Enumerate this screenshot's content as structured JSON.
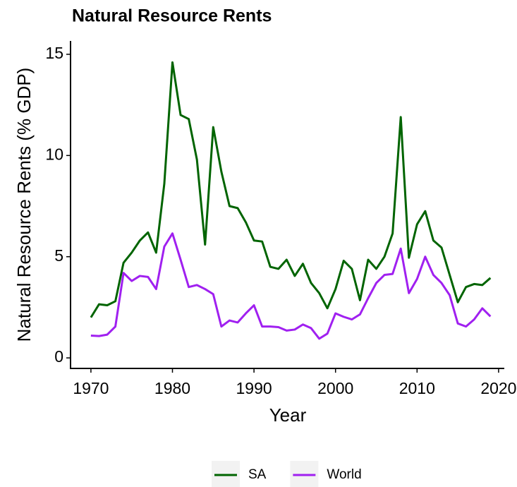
{
  "chart_data": {
    "type": "line",
    "title": "Natural Resource Rents",
    "x_label": "Year",
    "y_label": "Natural Resource Rents (% GDP)",
    "x": [
      1970,
      1971,
      1972,
      1973,
      1974,
      1975,
      1976,
      1977,
      1978,
      1979,
      1980,
      1981,
      1982,
      1983,
      1984,
      1985,
      1986,
      1987,
      1988,
      1989,
      1990,
      1991,
      1992,
      1993,
      1994,
      1995,
      1996,
      1997,
      1998,
      1999,
      2000,
      2001,
      2002,
      2003,
      2004,
      2005,
      2006,
      2007,
      2008,
      2009,
      2010,
      2011,
      2012,
      2013,
      2014,
      2015,
      2016,
      2017,
      2018,
      2019
    ],
    "series": [
      {
        "name": "SA",
        "color": "#006400",
        "values": [
          2.0,
          2.65,
          2.6,
          2.8,
          4.7,
          5.2,
          5.8,
          6.2,
          5.2,
          8.6,
          14.6,
          12.0,
          11.8,
          9.8,
          5.6,
          11.4,
          9.2,
          7.5,
          7.4,
          6.7,
          5.8,
          5.75,
          4.5,
          4.4,
          4.85,
          4.05,
          4.65,
          3.7,
          3.2,
          2.45,
          3.4,
          4.8,
          4.4,
          2.85,
          4.85,
          4.4,
          5.0,
          6.15,
          11.9,
          4.95,
          6.6,
          7.25,
          5.8,
          5.45,
          4.1,
          2.75,
          3.5,
          3.65,
          3.6,
          3.95
        ]
      },
      {
        "name": "World",
        "color": "#a020f0",
        "values": [
          1.1,
          1.08,
          1.15,
          1.55,
          4.2,
          3.8,
          4.05,
          4.0,
          3.4,
          5.5,
          6.15,
          4.85,
          3.5,
          3.6,
          3.4,
          3.15,
          1.55,
          1.85,
          1.75,
          2.2,
          2.6,
          1.55,
          1.55,
          1.52,
          1.35,
          1.4,
          1.65,
          1.47,
          0.95,
          1.2,
          2.2,
          2.03,
          1.9,
          2.15,
          2.95,
          3.7,
          4.1,
          4.15,
          5.4,
          3.2,
          3.9,
          5.0,
          4.1,
          3.7,
          3.1,
          1.7,
          1.55,
          1.9,
          2.45,
          2.05
        ]
      }
    ],
    "xlim": [
      1967.5,
      2020.7
    ],
    "xticks": [
      1970,
      1980,
      1990,
      2000,
      2010,
      2020
    ],
    "ylim": [
      -0.52,
      15.66
    ],
    "yticks": [
      0,
      5,
      10,
      15
    ],
    "legend": "bottom"
  }
}
